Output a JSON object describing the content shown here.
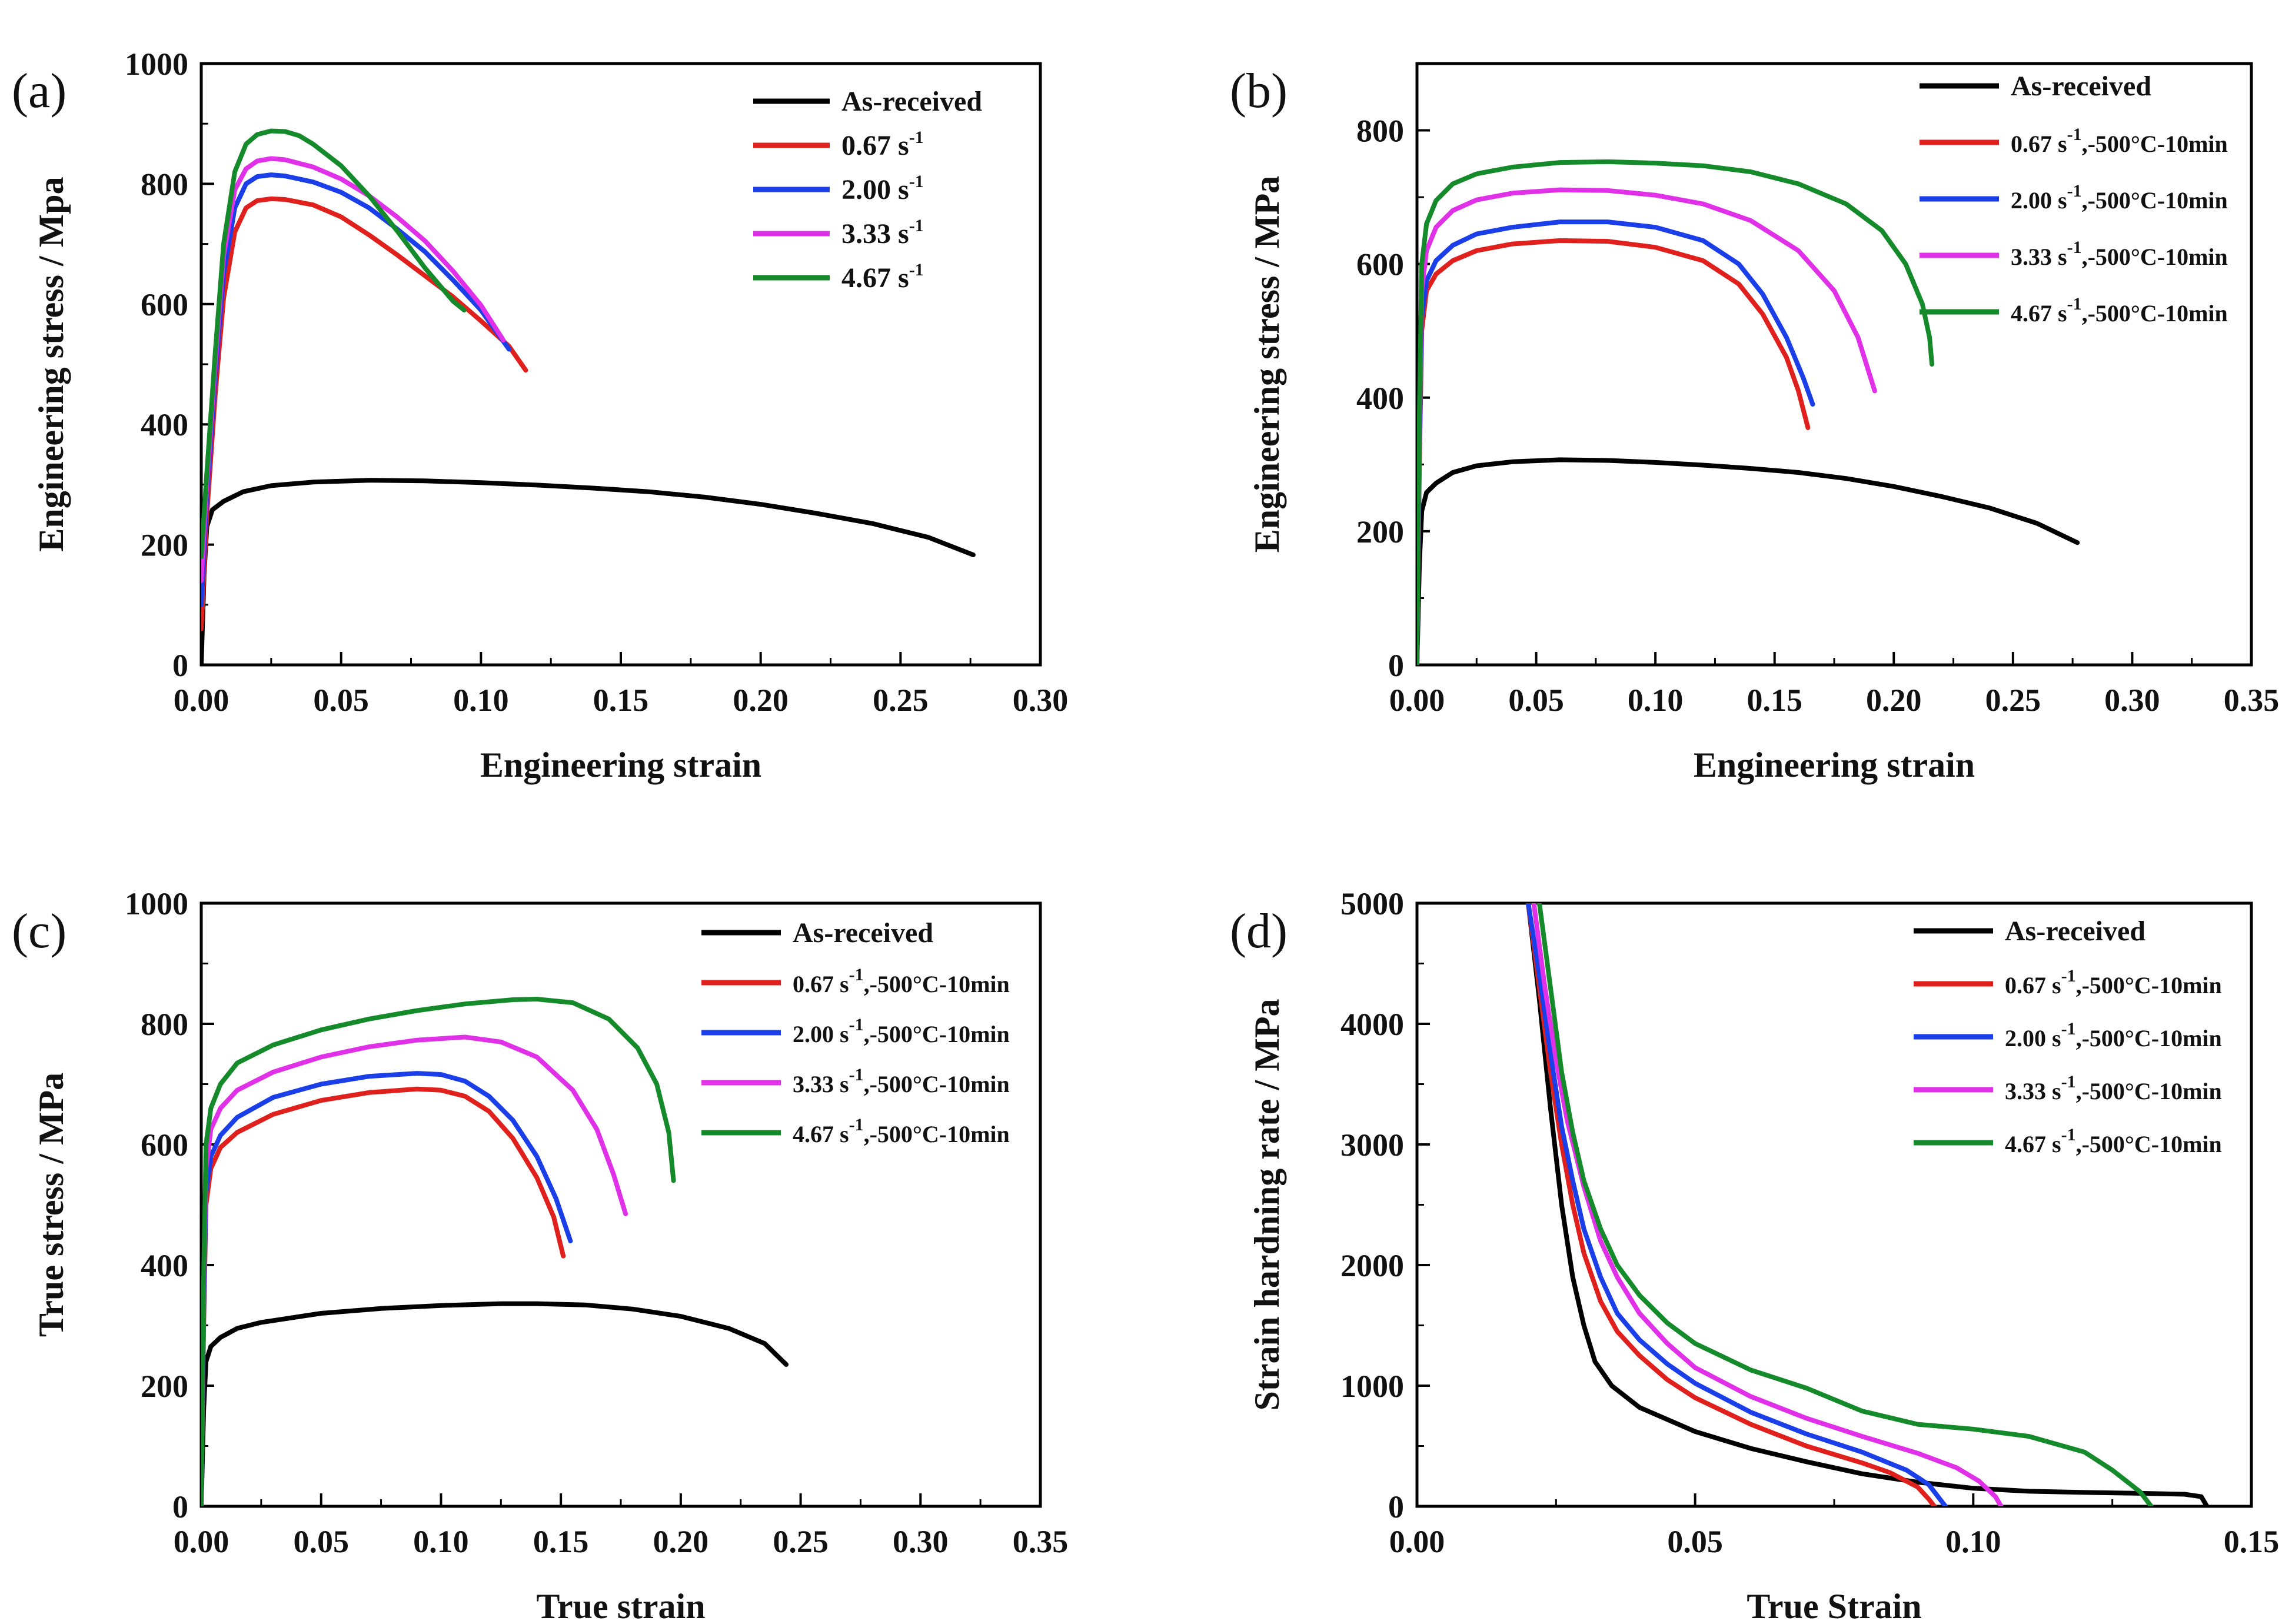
{
  "chart_data": [
    {
      "panel_label": "(a)",
      "type": "line",
      "xlabel": "Engineering strain",
      "ylabel": "Engineering stress / Mpa",
      "xlim": [
        0,
        0.3
      ],
      "ylim": [
        0,
        1000
      ],
      "xticks": [
        "0.00",
        "0.05",
        "0.10",
        "0.15",
        "0.20",
        "0.25",
        "0.30"
      ],
      "yticks": [
        "0",
        "200",
        "400",
        "600",
        "800",
        "1000"
      ],
      "legend_position": "top-right",
      "series": [
        {
          "name": "As-received",
          "legend_main": "As-received",
          "color": "#000000",
          "x": [
            0,
            0.001,
            0.002,
            0.004,
            0.008,
            0.015,
            0.025,
            0.04,
            0.06,
            0.08,
            0.1,
            0.12,
            0.14,
            0.16,
            0.18,
            0.2,
            0.22,
            0.24,
            0.26,
            0.276
          ],
          "y": [
            0,
            150,
            230,
            258,
            272,
            288,
            298,
            304,
            307,
            306,
            303,
            299,
            294,
            288,
            279,
            267,
            252,
            235,
            212,
            183
          ]
        },
        {
          "name": "0.67 s-1",
          "legend_main": "0.67 s",
          "legend_sup": "-1",
          "color": "#e0201c",
          "x": [
            0,
            0.002,
            0.005,
            0.008,
            0.012,
            0.016,
            0.02,
            0.025,
            0.03,
            0.04,
            0.05,
            0.06,
            0.07,
            0.08,
            0.09,
            0.1,
            0.11,
            0.116
          ],
          "y": [
            60,
            250,
            450,
            610,
            720,
            760,
            772,
            775,
            774,
            765,
            745,
            715,
            682,
            647,
            612,
            572,
            530,
            490
          ]
        },
        {
          "name": "2.00 s-1",
          "legend_main": "2.00 s",
          "legend_sup": "-1",
          "color": "#1a3ee8",
          "x": [
            0,
            0.002,
            0.005,
            0.008,
            0.012,
            0.016,
            0.02,
            0.025,
            0.03,
            0.04,
            0.05,
            0.06,
            0.07,
            0.08,
            0.09,
            0.1,
            0.11
          ],
          "y": [
            100,
            280,
            480,
            650,
            760,
            800,
            812,
            815,
            813,
            803,
            786,
            760,
            725,
            687,
            640,
            590,
            525
          ]
        },
        {
          "name": "3.33 s-1",
          "legend_main": "3.33 s",
          "legend_sup": "-1",
          "color": "#e030e8",
          "x": [
            0,
            0.002,
            0.005,
            0.008,
            0.012,
            0.016,
            0.02,
            0.025,
            0.03,
            0.04,
            0.05,
            0.06,
            0.07,
            0.08,
            0.09,
            0.1,
            0.108
          ],
          "y": [
            140,
            300,
            500,
            680,
            790,
            825,
            838,
            842,
            840,
            828,
            808,
            780,
            745,
            705,
            655,
            598,
            540
          ]
        },
        {
          "name": "4.67 s-1",
          "legend_main": "4.67 s",
          "legend_sup": "-1",
          "color": "#158a2a",
          "x": [
            0,
            0.002,
            0.005,
            0.008,
            0.012,
            0.016,
            0.02,
            0.025,
            0.03,
            0.035,
            0.04,
            0.05,
            0.06,
            0.07,
            0.08,
            0.09,
            0.094
          ],
          "y": [
            180,
            320,
            520,
            700,
            820,
            866,
            882,
            888,
            887,
            880,
            866,
            830,
            780,
            722,
            660,
            605,
            590
          ]
        }
      ]
    },
    {
      "panel_label": "(b)",
      "type": "line",
      "xlabel": "Engineering strain",
      "ylabel": "Engineering stress / MPa",
      "xlim": [
        0,
        0.35
      ],
      "ylim": [
        0,
        900
      ],
      "xticks": [
        "0.00",
        "0.05",
        "0.10",
        "0.15",
        "0.20",
        "0.25",
        "0.30",
        "0.35"
      ],
      "yticks": [
        "0",
        "200",
        "400",
        "600",
        "800"
      ],
      "legend_position": "top-right",
      "series": [
        {
          "name": "As-received",
          "legend_main": "As-received",
          "color": "#000000",
          "x": [
            0,
            0.001,
            0.002,
            0.004,
            0.008,
            0.015,
            0.025,
            0.04,
            0.06,
            0.08,
            0.1,
            0.12,
            0.14,
            0.16,
            0.18,
            0.2,
            0.22,
            0.24,
            0.26,
            0.277
          ],
          "y": [
            0,
            150,
            230,
            258,
            272,
            288,
            298,
            304,
            307,
            306,
            303,
            299,
            294,
            288,
            279,
            267,
            252,
            235,
            212,
            183
          ]
        },
        {
          "name": "0.67 s-1,-500°C-10min",
          "legend_main": "0.67 s",
          "legend_sup": "-1",
          "legend_tail": ",-500°C-10min",
          "color": "#e0201c",
          "x": [
            0,
            0.001,
            0.002,
            0.004,
            0.008,
            0.015,
            0.025,
            0.04,
            0.06,
            0.08,
            0.1,
            0.12,
            0.135,
            0.145,
            0.155,
            0.16,
            0.164
          ],
          "y": [
            0,
            300,
            500,
            560,
            585,
            605,
            620,
            630,
            635,
            634,
            625,
            605,
            570,
            525,
            460,
            410,
            355
          ]
        },
        {
          "name": "2.00 s-1,-500°C-10min",
          "legend_main": "2.00 s",
          "legend_sup": "-1",
          "legend_tail": ",-500°C-10min",
          "color": "#1a3ee8",
          "x": [
            0,
            0.001,
            0.002,
            0.004,
            0.008,
            0.015,
            0.025,
            0.04,
            0.06,
            0.08,
            0.1,
            0.12,
            0.135,
            0.145,
            0.155,
            0.162,
            0.166
          ],
          "y": [
            0,
            320,
            520,
            575,
            605,
            628,
            645,
            655,
            663,
            663,
            655,
            635,
            600,
            555,
            490,
            430,
            390
          ]
        },
        {
          "name": "3.33 s-1,-500°C-10min",
          "legend_main": "3.33 s",
          "legend_sup": "-1",
          "legend_tail": ",-500°C-10min",
          "color": "#e030e8",
          "x": [
            0,
            0.001,
            0.002,
            0.004,
            0.008,
            0.015,
            0.025,
            0.04,
            0.06,
            0.08,
            0.1,
            0.12,
            0.14,
            0.16,
            0.175,
            0.185,
            0.192
          ],
          "y": [
            0,
            350,
            560,
            620,
            655,
            680,
            696,
            706,
            711,
            710,
            703,
            690,
            665,
            620,
            560,
            490,
            410
          ]
        },
        {
          "name": "4.67 s-1,-500°C-10min",
          "legend_main": "4.67 s",
          "legend_sup": "-1",
          "legend_tail": ",-500°C-10min",
          "color": "#158a2a",
          "x": [
            0,
            0.001,
            0.002,
            0.004,
            0.008,
            0.015,
            0.025,
            0.04,
            0.06,
            0.08,
            0.1,
            0.12,
            0.14,
            0.16,
            0.18,
            0.195,
            0.205,
            0.212,
            0.215,
            0.216
          ],
          "y": [
            0,
            380,
            600,
            660,
            695,
            720,
            735,
            745,
            752,
            753,
            751,
            747,
            738,
            720,
            690,
            650,
            600,
            540,
            490,
            450
          ]
        }
      ]
    },
    {
      "panel_label": "(c)",
      "type": "line",
      "xlabel": "True strain",
      "ylabel": "True stress / MPa",
      "xlim": [
        0,
        0.35
      ],
      "ylim": [
        0,
        1000
      ],
      "xticks": [
        "0.00",
        "0.05",
        "0.10",
        "0.15",
        "0.20",
        "0.25",
        "0.30",
        "0.35"
      ],
      "yticks": [
        "0",
        "200",
        "400",
        "600",
        "800",
        "1000"
      ],
      "legend_position": "top-right",
      "series": [
        {
          "name": "As-received",
          "legend_main": "As-received",
          "color": "#000000",
          "x": [
            0,
            0.001,
            0.002,
            0.004,
            0.008,
            0.015,
            0.025,
            0.05,
            0.075,
            0.1,
            0.125,
            0.14,
            0.16,
            0.18,
            0.2,
            0.22,
            0.235,
            0.244
          ],
          "y": [
            0,
            160,
            240,
            265,
            280,
            295,
            305,
            320,
            328,
            333,
            336,
            336,
            334,
            327,
            315,
            295,
            270,
            235
          ]
        },
        {
          "name": "0.67 s-1,-500°C-10min",
          "legend_main": "0.67 s",
          "legend_sup": "-1",
          "legend_tail": ",-500°C-10min",
          "color": "#e0201c",
          "x": [
            0,
            0.001,
            0.002,
            0.004,
            0.008,
            0.015,
            0.03,
            0.05,
            0.07,
            0.09,
            0.1,
            0.11,
            0.12,
            0.13,
            0.14,
            0.147,
            0.151
          ],
          "y": [
            0,
            300,
            500,
            560,
            595,
            620,
            650,
            673,
            686,
            692,
            690,
            680,
            655,
            610,
            545,
            480,
            415
          ]
        },
        {
          "name": "2.00 s-1,-500°C-10min",
          "legend_main": "2.00 s",
          "legend_sup": "-1",
          "legend_tail": ",-500°C-10min",
          "color": "#1a3ee8",
          "x": [
            0,
            0.001,
            0.002,
            0.004,
            0.008,
            0.015,
            0.03,
            0.05,
            0.07,
            0.09,
            0.1,
            0.11,
            0.12,
            0.13,
            0.14,
            0.148,
            0.154
          ],
          "y": [
            0,
            320,
            520,
            580,
            615,
            645,
            678,
            700,
            713,
            718,
            716,
            705,
            680,
            640,
            580,
            510,
            440
          ]
        },
        {
          "name": "3.33 s-1,-500°C-10min",
          "legend_main": "3.33 s",
          "legend_sup": "-1",
          "legend_tail": ",-500°C-10min",
          "color": "#e030e8",
          "x": [
            0,
            0.001,
            0.002,
            0.004,
            0.008,
            0.015,
            0.03,
            0.05,
            0.07,
            0.09,
            0.11,
            0.125,
            0.14,
            0.155,
            0.165,
            0.172,
            0.177
          ],
          "y": [
            0,
            350,
            560,
            625,
            660,
            690,
            720,
            745,
            762,
            773,
            778,
            770,
            745,
            690,
            625,
            550,
            485
          ]
        },
        {
          "name": "4.67 s-1,-500°C-10min",
          "legend_main": "4.67 s",
          "legend_sup": "-1",
          "legend_tail": ",-500°C-10min",
          "color": "#158a2a",
          "x": [
            0,
            0.001,
            0.002,
            0.004,
            0.008,
            0.015,
            0.03,
            0.05,
            0.07,
            0.09,
            0.11,
            0.13,
            0.14,
            0.155,
            0.17,
            0.182,
            0.19,
            0.195,
            0.197
          ],
          "y": [
            0,
            380,
            600,
            660,
            700,
            735,
            765,
            790,
            808,
            822,
            833,
            840,
            841,
            835,
            808,
            760,
            700,
            620,
            540
          ]
        }
      ]
    },
    {
      "panel_label": "(d)",
      "type": "line",
      "xlabel": "True Strain",
      "ylabel": "Strain hardning rate / MPa",
      "xlim": [
        0,
        0.15
      ],
      "ylim": [
        0,
        5000
      ],
      "xticks": [
        "0.00",
        "0.05",
        "0.10",
        "0.15"
      ],
      "yticks": [
        "0",
        "1000",
        "2000",
        "3000",
        "4000",
        "5000"
      ],
      "legend_position": "top-right",
      "series": [
        {
          "name": "As-received",
          "legend_main": "As-received",
          "color": "#000000",
          "x": [
            0.02,
            0.022,
            0.024,
            0.026,
            0.028,
            0.03,
            0.032,
            0.035,
            0.04,
            0.05,
            0.06,
            0.07,
            0.08,
            0.09,
            0.1,
            0.11,
            0.12,
            0.13,
            0.138,
            0.141,
            0.142
          ],
          "y": [
            5000,
            4200,
            3300,
            2500,
            1900,
            1500,
            1200,
            1000,
            820,
            620,
            480,
            370,
            270,
            200,
            150,
            125,
            115,
            108,
            100,
            80,
            0
          ]
        },
        {
          "name": "0.67 s-1,-500°C-10min",
          "legend_main": "0.67 s",
          "legend_sup": "-1",
          "legend_tail": ",-500°C-10min",
          "color": "#e0201c",
          "x": [
            0.02,
            0.022,
            0.024,
            0.026,
            0.028,
            0.03,
            0.033,
            0.036,
            0.04,
            0.045,
            0.05,
            0.06,
            0.07,
            0.08,
            0.085,
            0.09,
            0.092,
            0.093
          ],
          "y": [
            5000,
            4300,
            3600,
            3000,
            2500,
            2100,
            1700,
            1450,
            1250,
            1050,
            900,
            680,
            500,
            360,
            280,
            160,
            60,
            0
          ]
        },
        {
          "name": "2.00 s-1,-500°C-10min",
          "legend_main": "2.00 s",
          "legend_sup": "-1",
          "legend_tail": ",-500°C-10min",
          "color": "#1a3ee8",
          "x": [
            0.02,
            0.022,
            0.024,
            0.026,
            0.028,
            0.03,
            0.033,
            0.036,
            0.04,
            0.045,
            0.05,
            0.06,
            0.07,
            0.08,
            0.088,
            0.092,
            0.094,
            0.095
          ],
          "y": [
            5000,
            4400,
            3750,
            3150,
            2700,
            2300,
            1900,
            1600,
            1380,
            1180,
            1020,
            780,
            600,
            450,
            300,
            180,
            60,
            0
          ]
        },
        {
          "name": "3.33 s-1,-500°C-10min",
          "legend_main": "3.33 s",
          "legend_sup": "-1",
          "legend_tail": ",-500°C-10min",
          "color": "#e030e8",
          "x": [
            0.021,
            0.023,
            0.025,
            0.027,
            0.03,
            0.033,
            0.036,
            0.04,
            0.045,
            0.05,
            0.06,
            0.07,
            0.08,
            0.09,
            0.097,
            0.101,
            0.104,
            0.105
          ],
          "y": [
            5000,
            4300,
            3700,
            3200,
            2650,
            2200,
            1900,
            1600,
            1350,
            1150,
            910,
            730,
            580,
            440,
            320,
            210,
            80,
            0
          ]
        },
        {
          "name": "4.67 s-1,-500°C-10min",
          "legend_main": "4.67 s",
          "legend_sup": "-1",
          "legend_tail": ",-500°C-10min",
          "color": "#158a2a",
          "x": [
            0.022,
            0.024,
            0.026,
            0.028,
            0.03,
            0.033,
            0.036,
            0.04,
            0.045,
            0.05,
            0.06,
            0.07,
            0.08,
            0.09,
            0.1,
            0.11,
            0.12,
            0.125,
            0.13,
            0.132
          ],
          "y": [
            5000,
            4300,
            3600,
            3100,
            2700,
            2300,
            2000,
            1750,
            1520,
            1350,
            1130,
            980,
            790,
            680,
            640,
            580,
            450,
            300,
            120,
            0
          ]
        }
      ]
    }
  ]
}
